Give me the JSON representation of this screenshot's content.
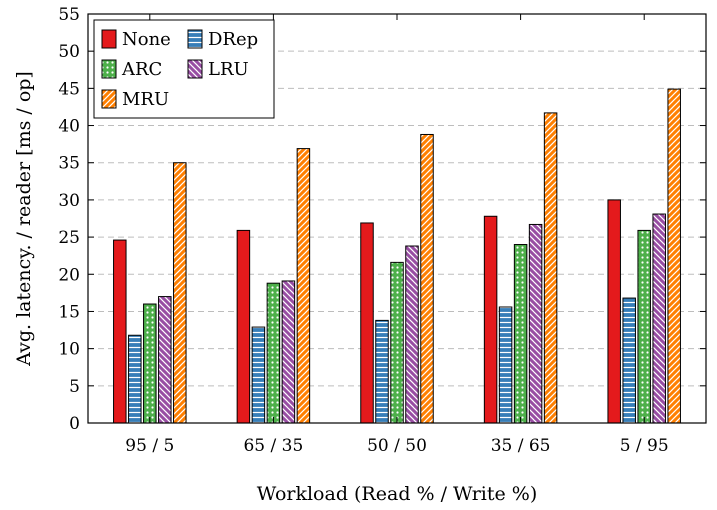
{
  "chart_data": {
    "type": "bar",
    "xlabel": "Workload (Read % / Write %)",
    "ylabel": "Avg. latency. / reader [ms / op]",
    "ylim": [
      0,
      55
    ],
    "yticks": [
      0,
      5,
      10,
      15,
      20,
      25,
      30,
      35,
      40,
      45,
      50,
      55
    ],
    "grid": "horizontal-dashed",
    "legend_position": "top-left",
    "categories": [
      "95 / 5",
      "65 / 35",
      "50 / 50",
      "35 / 65",
      "5 / 95"
    ],
    "series": [
      {
        "name": "None",
        "color": "#e41a1c",
        "pattern": "solid",
        "values": [
          24.6,
          25.9,
          26.9,
          27.8,
          30.0
        ]
      },
      {
        "name": "DRep",
        "color": "#377eb8",
        "pattern": "horizontal-lines",
        "values": [
          11.8,
          12.9,
          13.8,
          15.6,
          16.8
        ]
      },
      {
        "name": "ARC",
        "color": "#4daf4a",
        "pattern": "dots",
        "values": [
          16.0,
          18.8,
          21.6,
          24.0,
          25.9
        ]
      },
      {
        "name": "LRU",
        "color": "#984ea3",
        "pattern": "north-west-lines",
        "values": [
          17.0,
          19.1,
          23.8,
          26.7,
          28.1
        ]
      },
      {
        "name": "MRU",
        "color": "#ff7f00",
        "pattern": "north-east-lines",
        "values": [
          35.0,
          36.9,
          38.8,
          41.7,
          44.9
        ]
      }
    ]
  }
}
